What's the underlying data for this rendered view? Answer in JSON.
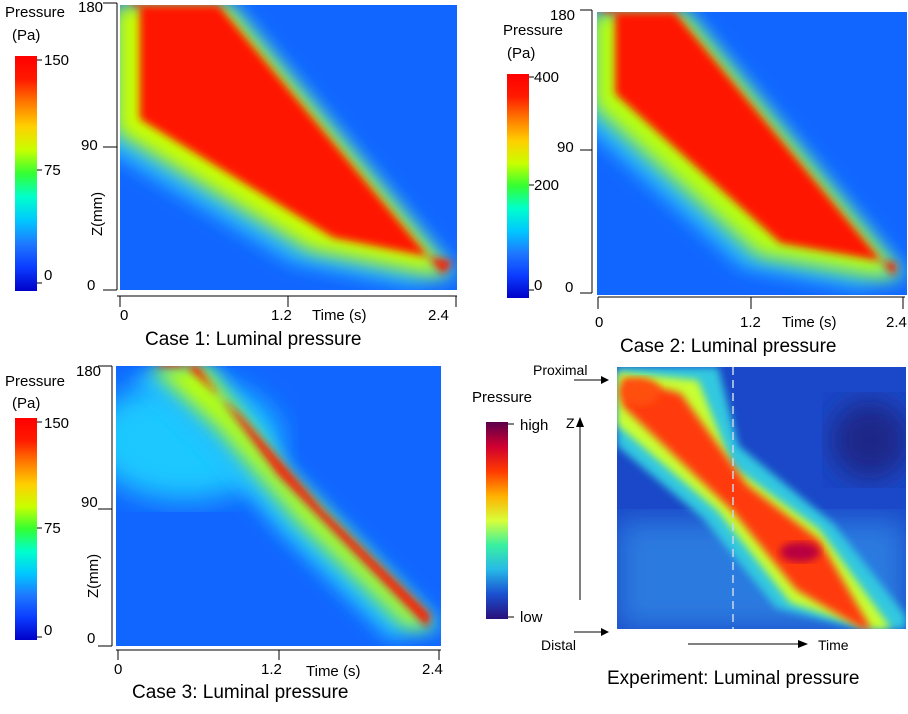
{
  "colors": {
    "jet": [
      "#0000c8",
      "#0b3cff",
      "#1e78ff",
      "#00c8ff",
      "#00ffcc",
      "#33ff33",
      "#c8ff00",
      "#ffd000",
      "#ff7a00",
      "#ff1a00",
      "#ff0000"
    ],
    "experiment": [
      "#2a0f7a",
      "#1a4fd0",
      "#27b8e8",
      "#39f0a0",
      "#d8ff3a",
      "#ffb000",
      "#ff3a00",
      "#d00030",
      "#5a004a"
    ]
  },
  "chart_data": [
    {
      "type": "heatmap",
      "id": "case1",
      "title": "Case 1: Luminal pressure",
      "xlabel": "Time (s)",
      "ylabel": "Z(mm)",
      "x_ticks": [
        "0",
        "1.2",
        "2.4"
      ],
      "y_ticks": [
        "0",
        "90",
        "180"
      ],
      "xlim": [
        0,
        2.4
      ],
      "ylim": [
        0,
        180
      ],
      "colorbar": {
        "title_line1": "Pressure",
        "title_line2": "(Pa)",
        "ticks": [
          "0",
          "75",
          "150"
        ],
        "range": [
          0,
          150
        ]
      },
      "wave_front": [
        [
          0.08,
          180
        ],
        [
          0.7,
          180
        ],
        [
          2.3,
          10
        ]
      ],
      "wave_tail": [
        [
          0.02,
          180
        ],
        [
          0.02,
          100
        ],
        [
          1.4,
          25
        ],
        [
          2.25,
          10
        ]
      ]
    },
    {
      "type": "heatmap",
      "id": "case2",
      "title": "Case 2: Luminal pressure",
      "xlabel": "Time (s)",
      "ylabel": "",
      "x_ticks": [
        "0",
        "1.2",
        "2.4"
      ],
      "y_ticks": [
        "0",
        "90",
        "180"
      ],
      "xlim": [
        0,
        2.4
      ],
      "ylim": [
        0,
        180
      ],
      "colorbar": {
        "title_line1": "Pressure",
        "title_line2": "(Pa)",
        "ticks": [
          "0",
          "200",
          "400"
        ],
        "range": [
          0,
          400
        ]
      },
      "wave_front": [
        [
          0.02,
          180
        ],
        [
          0.6,
          180
        ],
        [
          2.3,
          12
        ]
      ],
      "wave_tail": [
        [
          0.02,
          180
        ],
        [
          0.02,
          120
        ],
        [
          1.3,
          25
        ],
        [
          2.2,
          12
        ]
      ]
    },
    {
      "type": "heatmap",
      "id": "case3",
      "title": "Case 3: Luminal pressure",
      "xlabel": "Time (s)",
      "ylabel": "Z(mm)",
      "x_ticks": [
        "0",
        "1.2",
        "2.4"
      ],
      "y_ticks": [
        "0",
        "90",
        "180"
      ],
      "xlim": [
        0,
        2.4
      ],
      "ylim": [
        0,
        180
      ],
      "colorbar": {
        "title_line1": "Pressure",
        "title_line2": "(Pa)",
        "ticks": [
          "0",
          "75",
          "150"
        ],
        "range": [
          0,
          150
        ]
      },
      "wave_front": [
        [
          0.3,
          180
        ],
        [
          0.6,
          180
        ],
        [
          1.2,
          110
        ],
        [
          2.3,
          12
        ]
      ],
      "wave_tail": [
        [
          0.3,
          180
        ],
        [
          0.8,
          140
        ],
        [
          1.4,
          80
        ],
        [
          2.2,
          12
        ]
      ]
    },
    {
      "type": "heatmap",
      "id": "experiment",
      "title": "Experiment: Luminal pressure",
      "xlabel": "Time",
      "ylabel": "Z",
      "top_label": "Proximal",
      "bottom_label": "Distal",
      "colorbar": {
        "title": "Pressure",
        "high_label": "high",
        "low_label": "low"
      }
    }
  ]
}
